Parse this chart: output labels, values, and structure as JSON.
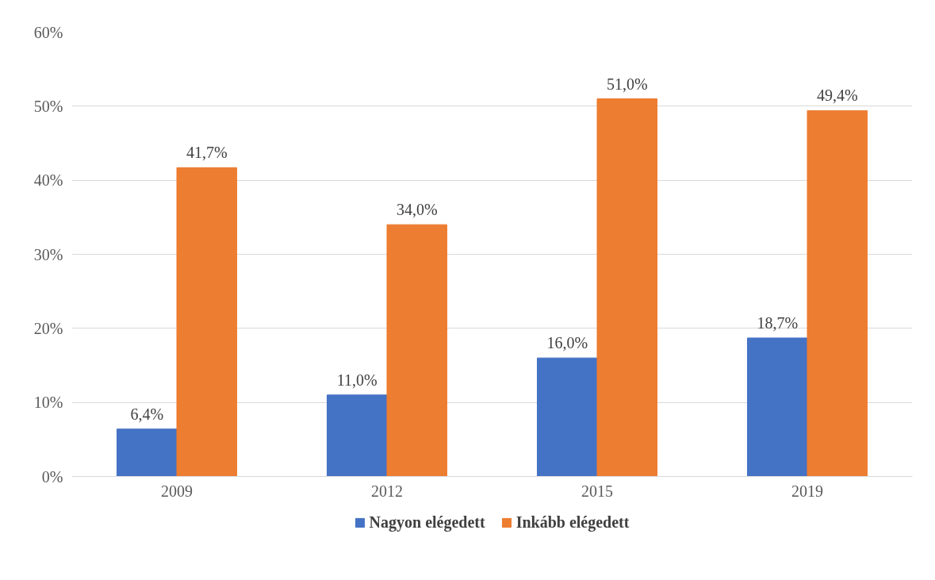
{
  "chart_data": {
    "type": "bar",
    "categories": [
      "2009",
      "2012",
      "2015",
      "2019"
    ],
    "series": [
      {
        "name": "Nagyon elégedett",
        "color": "#4472c4",
        "values": [
          6.4,
          11.0,
          16.0,
          18.7
        ],
        "value_labels": [
          "6,4%",
          "11,0%",
          "16,0%",
          "18,7%"
        ]
      },
      {
        "name": "Inkább elégedett",
        "color": "#ed7d31",
        "values": [
          41.7,
          34.0,
          51.0,
          49.4
        ],
        "value_labels": [
          "41,7%",
          "34,0%",
          "51,0%",
          "49,4%"
        ]
      }
    ],
    "ylim": [
      0,
      60
    ],
    "yticks": [
      {
        "value": 0,
        "label": "0%"
      },
      {
        "value": 10,
        "label": "10%"
      },
      {
        "value": 20,
        "label": "20%"
      },
      {
        "value": 30,
        "label": "30%"
      },
      {
        "value": 40,
        "label": "40%"
      },
      {
        "value": 50,
        "label": "50%"
      },
      {
        "value": 60,
        "label": "60%"
      }
    ],
    "grid": "y",
    "legend": "bottom"
  }
}
